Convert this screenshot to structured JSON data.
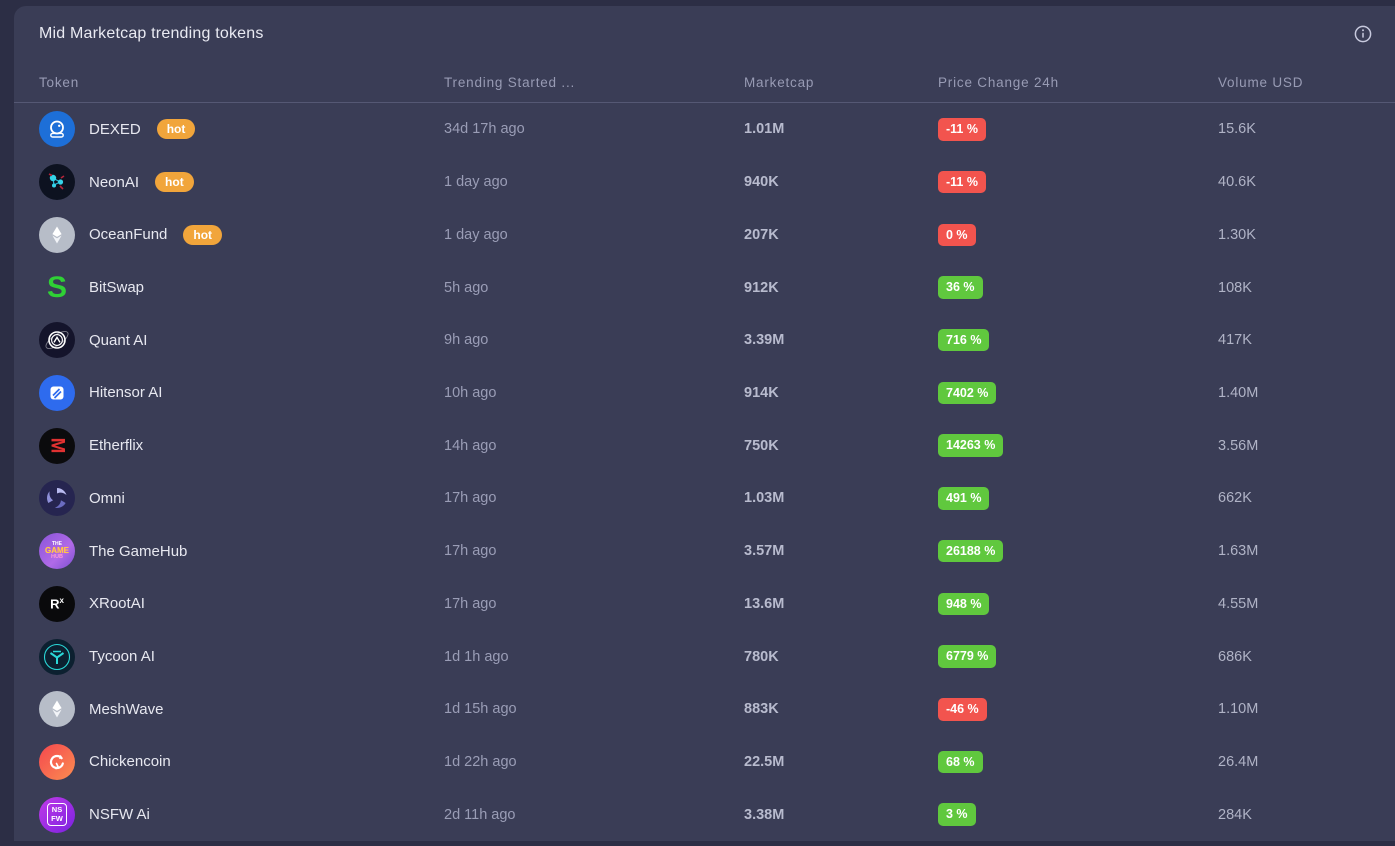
{
  "header": {
    "title": "Mid Marketcap trending tokens"
  },
  "labels": {
    "hot": "hot"
  },
  "colors": {
    "page_bg": "#2c2e45",
    "card_bg": "#3a3d56",
    "badge_negative": "#f2544e",
    "badge_positive": "#60c83e",
    "hot_badge": "#f1a53b"
  },
  "table": {
    "columns": [
      "Token",
      "Trending Started ...",
      "Marketcap",
      "Price Change 24h",
      "Volume USD"
    ],
    "rows": [
      {
        "name": "DEXED",
        "icon": "astronaut-helmet",
        "hot": true,
        "trending_started": "34d 17h ago",
        "marketcap": "1.01M",
        "price_change_24h": "-11 %",
        "direction": "negative",
        "volume_usd": "15.6K"
      },
      {
        "name": "NeonAI",
        "icon": "neon-network",
        "hot": true,
        "trending_started": "1 day ago",
        "marketcap": "940K",
        "price_change_24h": "-11 %",
        "direction": "negative",
        "volume_usd": "40.6K"
      },
      {
        "name": "OceanFund",
        "icon": "ethereum",
        "hot": true,
        "trending_started": "1 day ago",
        "marketcap": "207K",
        "price_change_24h": "0 %",
        "direction": "negative",
        "volume_usd": "1.30K"
      },
      {
        "name": "BitSwap",
        "icon": "green-s",
        "hot": false,
        "trending_started": "5h ago",
        "marketcap": "912K",
        "price_change_24h": "36 %",
        "direction": "positive",
        "volume_usd": "108K"
      },
      {
        "name": "Quant AI",
        "icon": "compass-orbit",
        "hot": false,
        "trending_started": "9h ago",
        "marketcap": "3.39M",
        "price_change_24h": "716 %",
        "direction": "positive",
        "volume_usd": "417K"
      },
      {
        "name": "Hitensor AI",
        "icon": "blue-tile",
        "hot": false,
        "trending_started": "10h ago",
        "marketcap": "914K",
        "price_change_24h": "7402 %",
        "direction": "positive",
        "volume_usd": "1.40M"
      },
      {
        "name": "Etherflix",
        "icon": "red-m",
        "hot": false,
        "trending_started": "14h ago",
        "marketcap": "750K",
        "price_change_24h": "14263 %",
        "direction": "positive",
        "volume_usd": "3.56M"
      },
      {
        "name": "Omni",
        "icon": "swirl",
        "hot": false,
        "trending_started": "17h ago",
        "marketcap": "1.03M",
        "price_change_24h": "491 %",
        "direction": "positive",
        "volume_usd": "662K"
      },
      {
        "name": "The GameHub",
        "icon": "gamehub-logo",
        "hot": false,
        "trending_started": "17h ago",
        "marketcap": "3.57M",
        "price_change_24h": "26188 %",
        "direction": "positive",
        "volume_usd": "1.63M"
      },
      {
        "name": "XRootAI",
        "icon": "r-superscript-x",
        "hot": false,
        "trending_started": "17h ago",
        "marketcap": "13.6M",
        "price_change_24h": "948 %",
        "direction": "positive",
        "volume_usd": "4.55M"
      },
      {
        "name": "Tycoon AI",
        "icon": "teal-emblem",
        "hot": false,
        "trending_started": "1d 1h ago",
        "marketcap": "780K",
        "price_change_24h": "6779 %",
        "direction": "positive",
        "volume_usd": "686K"
      },
      {
        "name": "MeshWave",
        "icon": "ethereum",
        "hot": false,
        "trending_started": "1d 15h ago",
        "marketcap": "883K",
        "price_change_24h": "-46 %",
        "direction": "negative",
        "volume_usd": "1.10M"
      },
      {
        "name": "Chickencoin",
        "icon": "chicken",
        "hot": false,
        "trending_started": "1d 22h ago",
        "marketcap": "22.5M",
        "price_change_24h": "68 %",
        "direction": "positive",
        "volume_usd": "26.4M"
      },
      {
        "name": "NSFW Ai",
        "icon": "nsfw-tile",
        "hot": false,
        "trending_started": "2d 11h ago",
        "marketcap": "3.38M",
        "price_change_24h": "3 %",
        "direction": "positive",
        "volume_usd": "284K"
      }
    ]
  }
}
